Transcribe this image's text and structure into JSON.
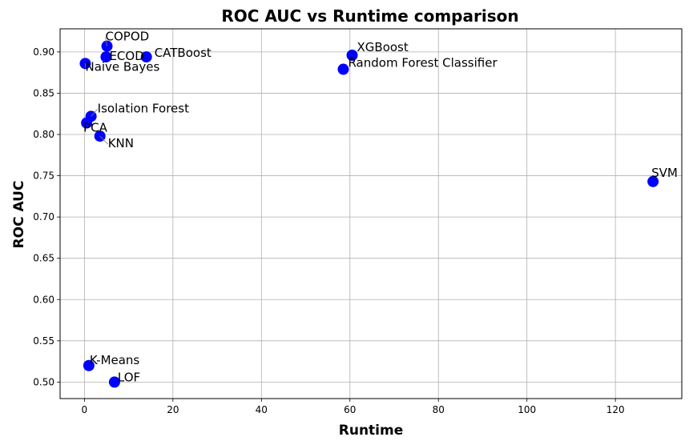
{
  "chart_data": {
    "type": "scatter",
    "title": "ROC AUC vs Runtime comparison",
    "xlabel": "Runtime",
    "ylabel": "ROC AUC",
    "xlim": [
      -5.5,
      135
    ],
    "ylim": [
      0.48,
      0.928
    ],
    "xticks": [
      0,
      20,
      40,
      60,
      80,
      100,
      120
    ],
    "yticks": [
      0.5,
      0.55,
      0.6,
      0.65,
      0.7,
      0.75,
      0.8,
      0.85,
      0.9
    ],
    "grid": true,
    "marker_color": "#0000ff",
    "points": [
      {
        "label": "COPOD",
        "x": 5.1,
        "y": 0.907
      },
      {
        "label": "ECOD",
        "x": 4.9,
        "y": 0.894
      },
      {
        "label": "CATBoost",
        "x": 14.0,
        "y": 0.894
      },
      {
        "label": "Naive Bayes",
        "x": 0.2,
        "y": 0.886
      },
      {
        "label": "XGBoost",
        "x": 60.5,
        "y": 0.896
      },
      {
        "label": "Random Forest Classifier",
        "x": 58.5,
        "y": 0.879
      },
      {
        "label": "Isolation Forest",
        "x": 1.5,
        "y": 0.822
      },
      {
        "label": "PCA",
        "x": 0.5,
        "y": 0.814
      },
      {
        "label": "KNN",
        "x": 3.5,
        "y": 0.798
      },
      {
        "label": "SVM",
        "x": 128.5,
        "y": 0.743
      },
      {
        "label": "K-Means",
        "x": 1.0,
        "y": 0.52
      },
      {
        "label": "LOF",
        "x": 6.8,
        "y": 0.5
      }
    ]
  }
}
